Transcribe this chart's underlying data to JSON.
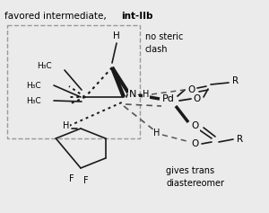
{
  "fig_bg": "#ebebeb",
  "lc": "#1a1a1a",
  "dc": "#555555",
  "title_normal": "favored intermediate, ",
  "title_bold": "int-IIb",
  "no_steric": "no steric",
  "clash": "clash",
  "gives_trans": "gives trans",
  "diastereomer": "diastereomer"
}
